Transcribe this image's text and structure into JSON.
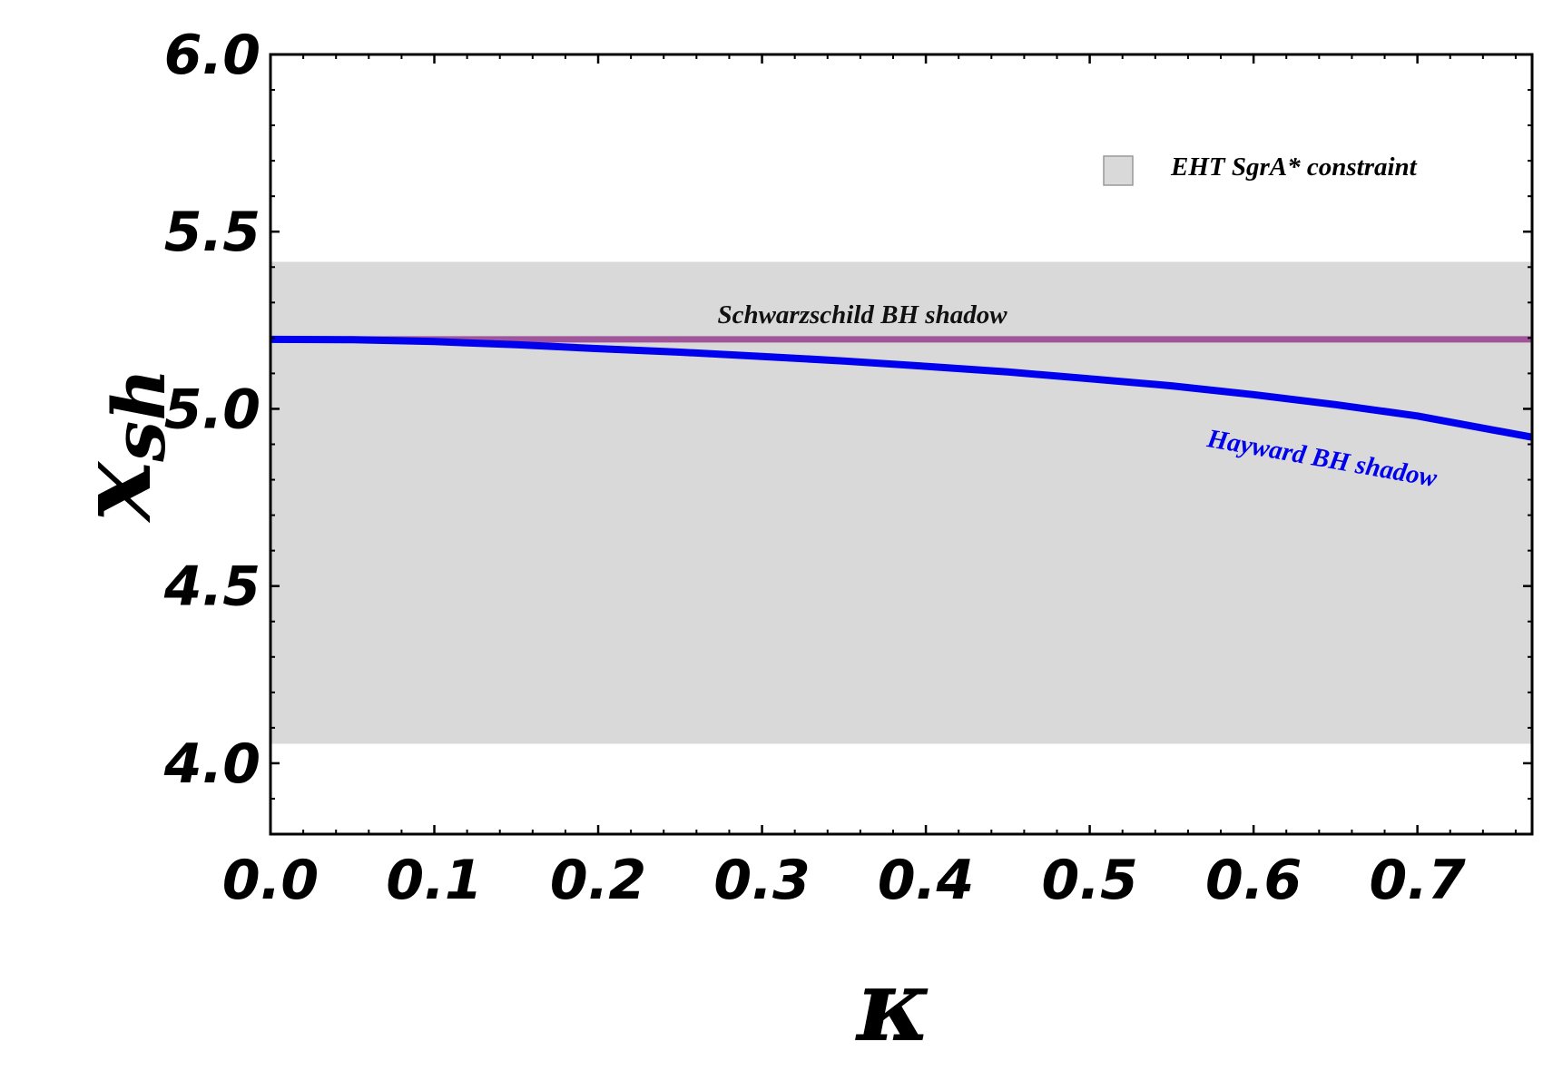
{
  "chart_data": {
    "type": "line",
    "title": "",
    "xlabel": "κ",
    "ylabel_main": "x",
    "ylabel_sub": "sh",
    "xlim": [
      0.0,
      0.77
    ],
    "ylim": [
      3.8,
      6.0
    ],
    "x_ticks": [
      "0.0",
      "0.1",
      "0.2",
      "0.3",
      "0.4",
      "0.5",
      "0.6",
      "0.7"
    ],
    "y_ticks": [
      "4.0",
      "4.5",
      "5.0",
      "5.5",
      "6.0"
    ],
    "band": {
      "label": "EHT SgrA* constraint",
      "ymin": 4.055,
      "ymax": 5.415,
      "color": "#d9d9d9"
    },
    "series": [
      {
        "name": "Schwarzschild  BH shadow",
        "color": "#a0559a",
        "x": [
          0.0,
          0.77
        ],
        "y": [
          5.196,
          5.196
        ]
      },
      {
        "name": "Hayward BH shadow",
        "color": "#0000ee",
        "x": [
          0.0,
          0.05,
          0.1,
          0.15,
          0.2,
          0.25,
          0.3,
          0.35,
          0.4,
          0.45,
          0.5,
          0.55,
          0.6,
          0.65,
          0.7,
          0.77
        ],
        "y": [
          5.196,
          5.195,
          5.19,
          5.181,
          5.17,
          5.16,
          5.148,
          5.135,
          5.12,
          5.104,
          5.085,
          5.065,
          5.04,
          5.012,
          4.98,
          4.92
        ]
      }
    ],
    "legend_position": "top-right",
    "grid": false
  }
}
